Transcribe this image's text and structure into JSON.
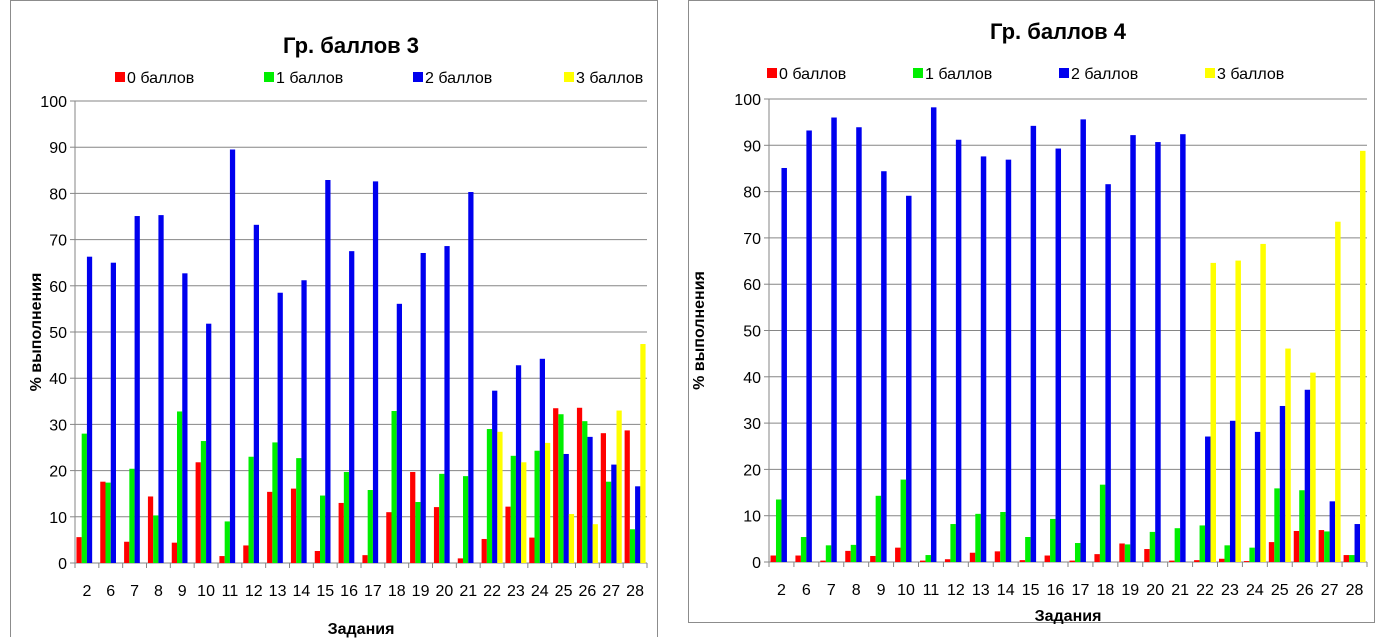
{
  "colors": {
    "zero": "#ff0000",
    "one": "#00ee00",
    "two": "#0000ee",
    "three": "#ffff00",
    "grid": "#868686"
  },
  "chart_data": [
    {
      "type": "bar",
      "title": "Гр. баллов 3",
      "xlabel": "Задания",
      "ylabel": "% выполнения",
      "ylim": [
        0,
        100
      ],
      "yticks": [
        "0",
        "10",
        "20",
        "30",
        "40",
        "50",
        "60",
        "70",
        "80",
        "90",
        "100"
      ],
      "grid": true,
      "legend_position": "top",
      "categories": [
        "2",
        "6",
        "7",
        "8",
        "9",
        "10",
        "11",
        "12",
        "13",
        "14",
        "15",
        "16",
        "17",
        "18",
        "19",
        "20",
        "21",
        "22",
        "23",
        "24",
        "25",
        "26",
        "27",
        "28"
      ],
      "series": [
        {
          "name": "0 баллов",
          "color": "#ff0000",
          "values": [
            5.6,
            17.6,
            4.6,
            14.4,
            4.4,
            21.8,
            1.5,
            3.8,
            15.4,
            16.1,
            2.6,
            13.0,
            1.7,
            11.0,
            19.7,
            12.1,
            1.0,
            5.2,
            12.2,
            5.5,
            33.5,
            33.6,
            28.1,
            28.7
          ]
        },
        {
          "name": "1 баллов",
          "color": "#00ee00",
          "values": [
            28.0,
            17.4,
            20.4,
            10.3,
            32.8,
            26.4,
            9.0,
            23.0,
            26.1,
            22.7,
            14.6,
            19.7,
            15.8,
            32.9,
            13.2,
            19.3,
            18.8,
            29.0,
            23.2,
            24.3,
            32.2,
            30.7,
            17.6,
            7.3
          ]
        },
        {
          "name": "2 баллов",
          "color": "#0000ee",
          "values": [
            66.3,
            65.0,
            75.1,
            75.3,
            62.7,
            51.8,
            89.5,
            73.2,
            58.5,
            61.2,
            82.9,
            67.5,
            82.6,
            56.1,
            67.1,
            68.6,
            80.3,
            37.3,
            42.8,
            44.2,
            23.6,
            27.3,
            21.3,
            16.6
          ]
        },
        {
          "name": "3 баллов",
          "color": "#ffff00",
          "values": [
            0,
            0,
            0,
            0,
            0,
            0,
            0,
            0,
            0,
            0,
            0,
            0,
            0,
            0,
            0,
            0,
            0,
            28.4,
            21.8,
            26.0,
            10.6,
            8.4,
            33.0,
            47.4
          ]
        }
      ]
    },
    {
      "type": "bar",
      "title": "Гр. баллов 4",
      "xlabel": "Задания",
      "ylabel": "% выполнения",
      "ylim": [
        0,
        100
      ],
      "yticks": [
        "0",
        "10",
        "20",
        "30",
        "40",
        "50",
        "60",
        "70",
        "80",
        "90",
        "100"
      ],
      "grid": true,
      "legend_position": "top",
      "categories": [
        "2",
        "6",
        "7",
        "8",
        "9",
        "10",
        "11",
        "12",
        "13",
        "14",
        "15",
        "16",
        "17",
        "18",
        "19",
        "20",
        "21",
        "22",
        "23",
        "24",
        "25",
        "26",
        "27",
        "28"
      ],
      "series": [
        {
          "name": "0 баллов",
          "color": "#ff0000",
          "values": [
            1.4,
            1.4,
            0.3,
            2.4,
            1.3,
            3.1,
            0.3,
            0.6,
            2.0,
            2.3,
            0.4,
            1.4,
            0.3,
            1.7,
            4.0,
            2.8,
            0.3,
            0.4,
            0.7,
            0.2,
            4.3,
            6.7,
            6.9,
            1.5
          ]
        },
        {
          "name": "1 баллов",
          "color": "#00ee00",
          "values": [
            13.5,
            5.4,
            3.6,
            3.7,
            14.3,
            17.8,
            1.5,
            8.2,
            10.4,
            10.8,
            5.4,
            9.3,
            4.1,
            16.7,
            3.8,
            6.5,
            7.3,
            7.9,
            3.6,
            3.1,
            15.9,
            15.5,
            6.6,
            1.5
          ]
        },
        {
          "name": "2 баллов",
          "color": "#0000ee",
          "values": [
            85.1,
            93.2,
            96.0,
            93.9,
            84.4,
            79.1,
            98.2,
            91.2,
            87.6,
            86.9,
            94.2,
            89.3,
            95.6,
            81.6,
            92.2,
            90.7,
            92.4,
            27.1,
            30.5,
            28.1,
            33.7,
            37.2,
            13.1,
            8.2
          ]
        },
        {
          "name": "3 баллов",
          "color": "#ffff00",
          "values": [
            0,
            0,
            0,
            0,
            0,
            0,
            0,
            0,
            0,
            0,
            0,
            0,
            0,
            0,
            0,
            0,
            0,
            64.6,
            65.1,
            68.7,
            46.1,
            40.9,
            73.5,
            88.8
          ]
        }
      ]
    }
  ]
}
